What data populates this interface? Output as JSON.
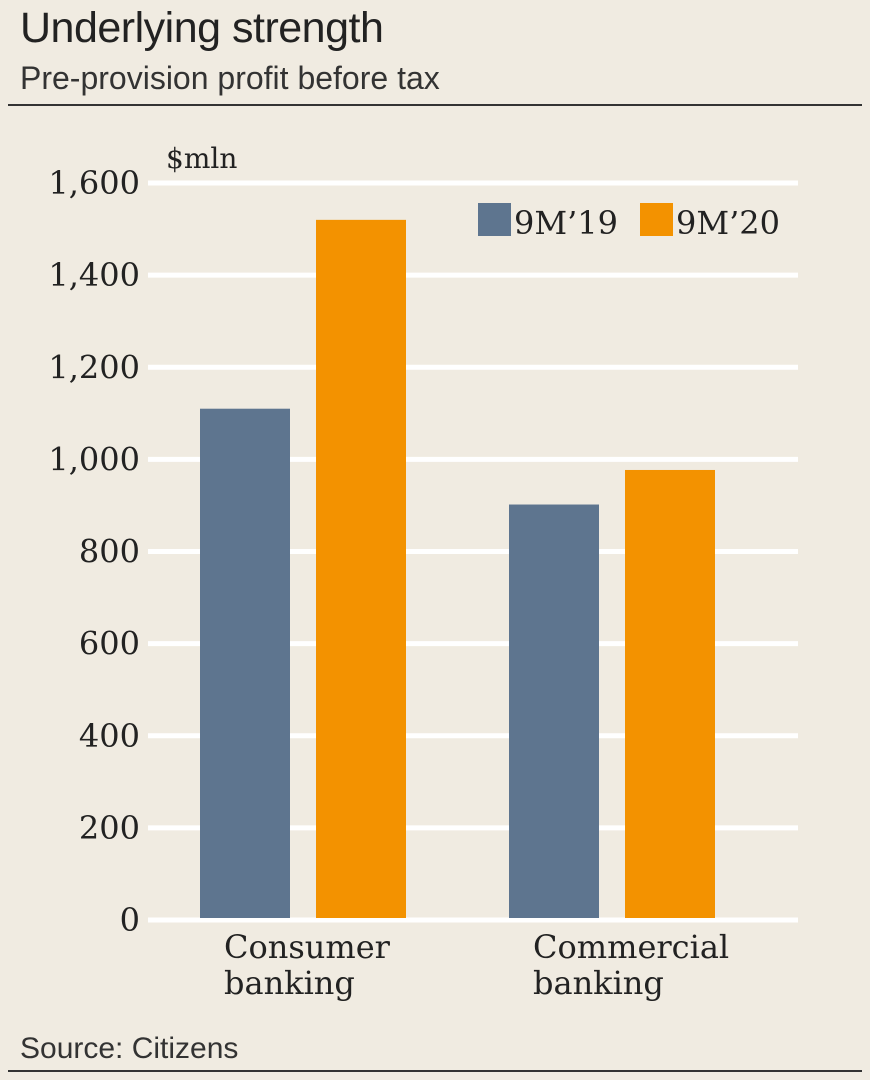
{
  "header": {
    "title": "Underlying strength",
    "subtitle": "Pre-provision profit before tax"
  },
  "footer": {
    "source": "Source: Citizens"
  },
  "colors": {
    "background": "#f0ebe1",
    "series_9M19": "#5e758f",
    "series_9M20": "#f39200",
    "gridline": "#ffffff"
  },
  "chart_data": {
    "type": "bar",
    "title": "Underlying strength",
    "subtitle": "Pre-provision profit before tax",
    "unit_label": "$mln",
    "categories": [
      [
        "Consumer",
        "banking"
      ],
      [
        "Commercial",
        "banking"
      ]
    ],
    "series": [
      {
        "name": "9M’19",
        "values": [
          1110,
          902
        ]
      },
      {
        "name": "9M’20",
        "values": [
          1520,
          977
        ]
      }
    ],
    "ylim": [
      0,
      1600
    ],
    "yticks": [
      0,
      200,
      400,
      600,
      800,
      1000,
      1200,
      1400,
      1600
    ],
    "ytick_labels": [
      "0",
      "200",
      "400",
      "600",
      "800",
      "1,000",
      "1,200",
      "1,400",
      "1,600"
    ],
    "grid": true,
    "legend_position": "top-right"
  }
}
